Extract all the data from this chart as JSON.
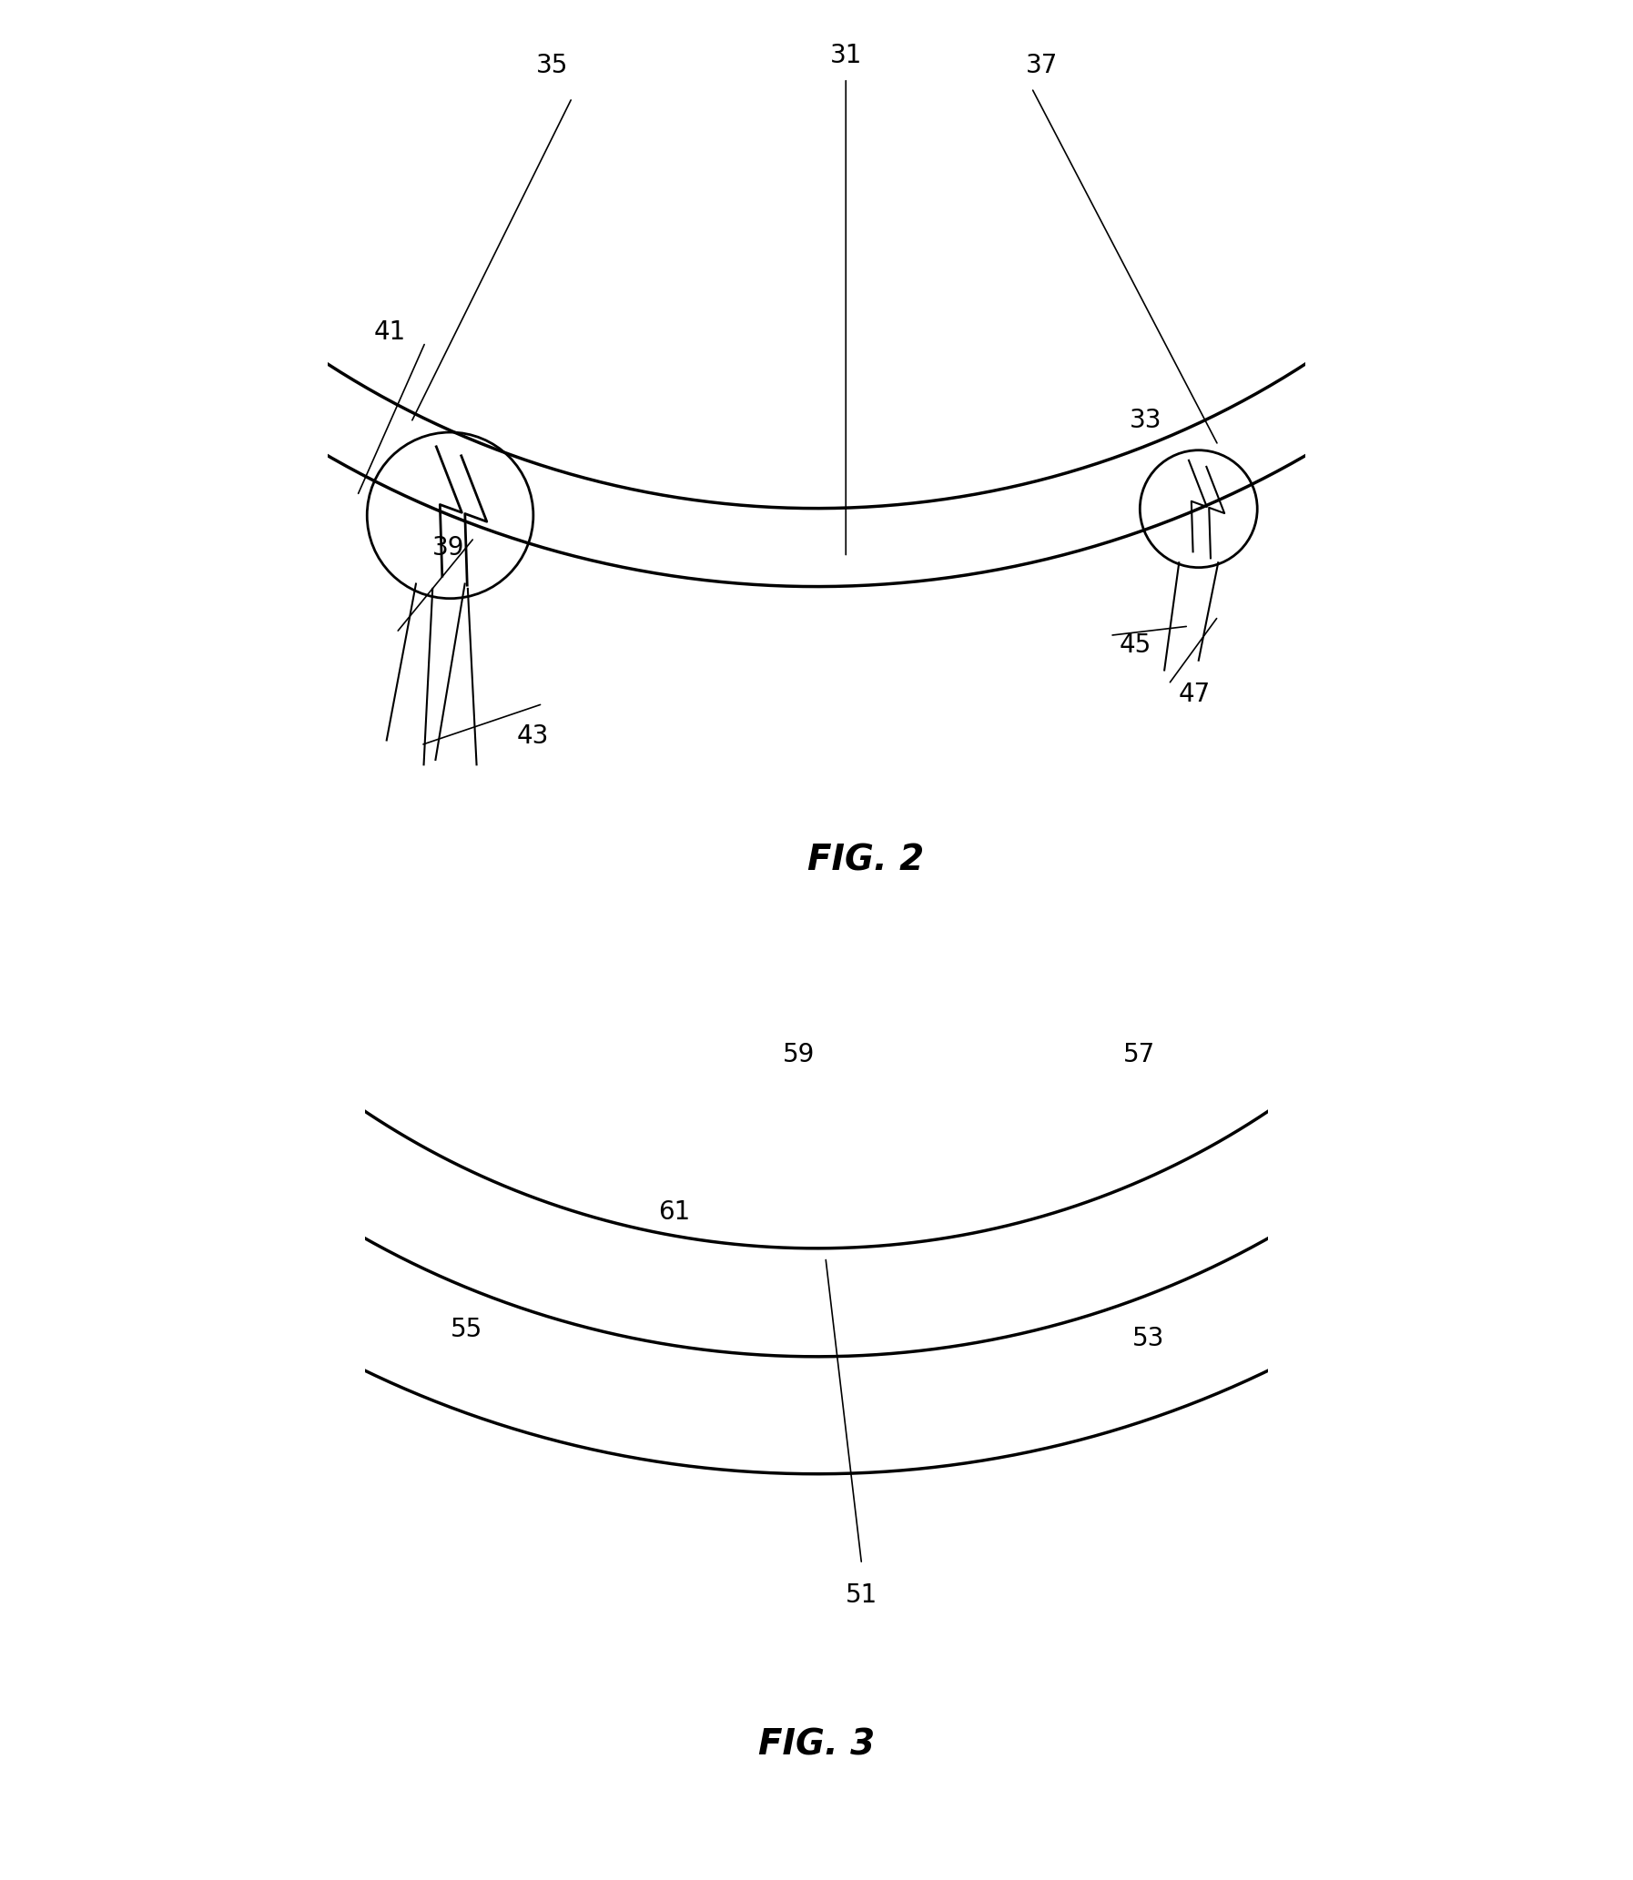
{
  "fig_title2": "FIG. 2",
  "fig_title3": "FIG. 3",
  "bg_color": "#ffffff",
  "line_color": "#000000",
  "lw_thin": 1.5,
  "lw_med": 2.0,
  "lw_thick": 2.5,
  "lw_leader": 1.2,
  "label_fontsize": 20,
  "fig_label_fontsize": 28
}
